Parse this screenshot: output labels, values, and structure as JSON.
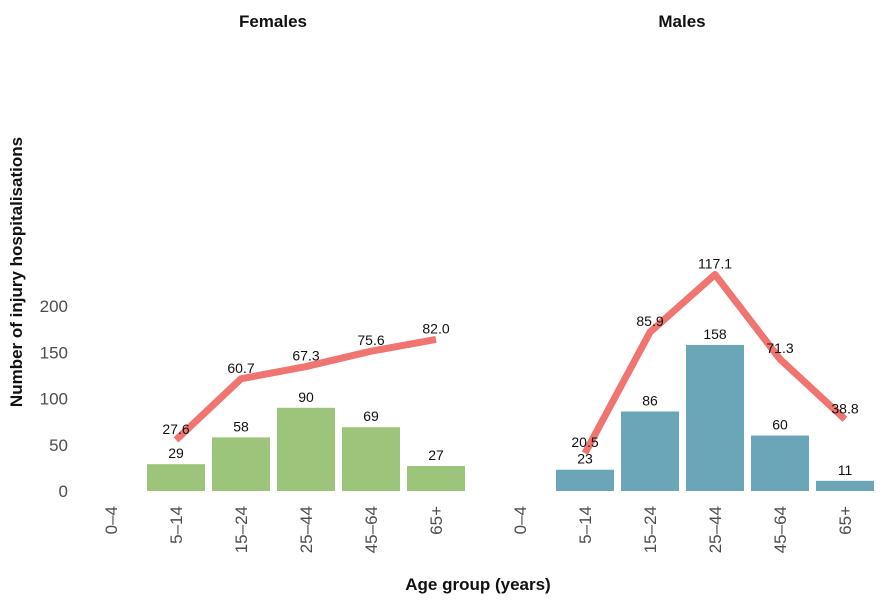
{
  "chart_data": {
    "type": "bar",
    "ylabel": "Number of injury hospitalisations",
    "xlabel": "Age group (years)",
    "ylim": [
      0,
      235
    ],
    "yticks": [
      "0",
      "50",
      "100",
      "150",
      "200"
    ],
    "categories": [
      "0–4",
      "5–14",
      "15–24",
      "25–44",
      "45–64",
      "65+"
    ],
    "panels": [
      {
        "title": "Females",
        "bar_color": "#9dc47b",
        "line_color": "#f07470",
        "counts": [
          null,
          29,
          58,
          90,
          69,
          27
        ],
        "count_labels": [
          "",
          "29",
          "58",
          "90",
          "69",
          "27"
        ],
        "rates": [
          null,
          27.6,
          60.7,
          67.3,
          75.6,
          82.0
        ],
        "rate_labels": [
          "",
          "27.6",
          "60.7",
          "67.3",
          "75.6",
          "82.0"
        ]
      },
      {
        "title": "Males",
        "bar_color": "#6aa6b7",
        "line_color": "#f07470",
        "counts": [
          null,
          23,
          86,
          158,
          60,
          11
        ],
        "count_labels": [
          "",
          "23",
          "86",
          "158",
          "60",
          "11"
        ],
        "rates": [
          null,
          20.5,
          85.9,
          117.1,
          71.3,
          38.8
        ],
        "rate_labels": [
          "",
          "20.5",
          "85.9",
          "117.1",
          "71.3",
          "38.8"
        ]
      }
    ]
  }
}
